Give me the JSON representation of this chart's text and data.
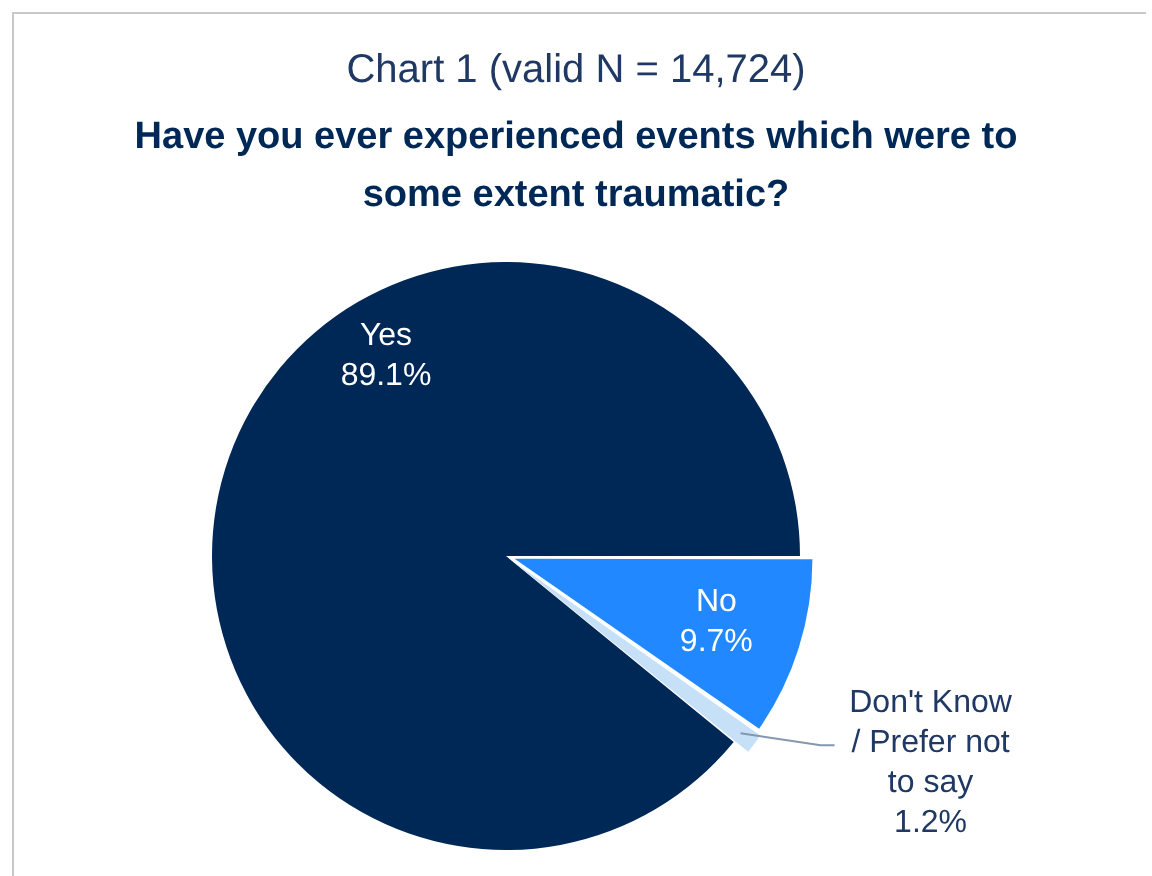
{
  "chart_data": {
    "type": "pie",
    "title": "Chart 1 (valid N = 14,724)",
    "subtitle": "Have you ever experienced events which were to some extent traumatic?",
    "categories": [
      "Yes",
      "No",
      "Don't Know / Prefer not to say"
    ],
    "values": [
      89.1,
      9.7,
      1.2
    ],
    "colors": [
      "#002856",
      "#2288ff",
      "#c6e0f8"
    ],
    "value_labels": [
      "89.1%",
      "9.7%",
      "1.2%"
    ],
    "legend": false
  }
}
